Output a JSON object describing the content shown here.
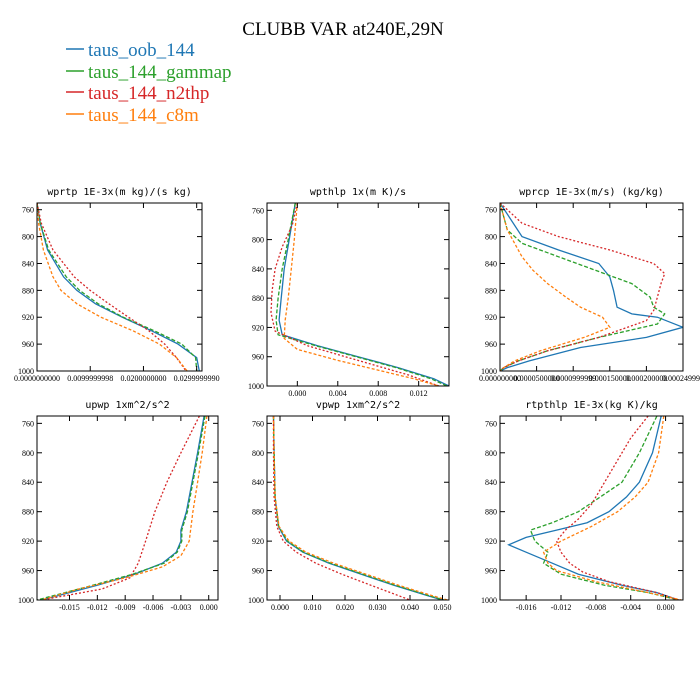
{
  "title": "CLUBB VAR at240E,29N",
  "legend": [
    {
      "label": "taus_oob_144",
      "color": "#1f77b4"
    },
    {
      "label": "taus_144_gammap",
      "color": "#2ca02c"
    },
    {
      "label": "taus_144_n2thp",
      "color": "#d62728"
    },
    {
      "label": "taus_144_c8m",
      "color": "#ff7f0e"
    }
  ],
  "chart_data": [
    {
      "type": "line",
      "title": "wprtp  1E-3x(m kg)/(s kg)",
      "xlim": [
        0,
        0.031
      ],
      "ylim": [
        750,
        1000
      ],
      "xticks": [
        0,
        0.01,
        0.02,
        0.03
      ],
      "xtick_labels": [
        "0.0000000000",
        "0.0099999998",
        "0.0200000000",
        "0.0299999990"
      ],
      "yticks": [
        760,
        800,
        840,
        880,
        920,
        960,
        1000
      ],
      "series": [
        {
          "name": "taus_oob_144",
          "y": [
            750,
            780,
            820,
            860,
            880,
            900,
            920,
            940,
            960,
            980,
            1000
          ],
          "x": [
            0.0,
            0.0006,
            0.002,
            0.005,
            0.0075,
            0.011,
            0.016,
            0.0215,
            0.0265,
            0.03,
            0.0305
          ]
        },
        {
          "name": "taus_144_gammap",
          "y": [
            750,
            780,
            820,
            860,
            880,
            900,
            920,
            940,
            960,
            980,
            1000
          ],
          "x": [
            0.0,
            0.0006,
            0.0022,
            0.0055,
            0.008,
            0.0115,
            0.0162,
            0.022,
            0.0272,
            0.0298,
            0.03
          ]
        },
        {
          "name": "taus_144_n2thp",
          "y": [
            750,
            780,
            820,
            860,
            880,
            900,
            920,
            940,
            960,
            980,
            1000
          ],
          "x": [
            0.0,
            0.0008,
            0.003,
            0.007,
            0.01,
            0.0135,
            0.0172,
            0.021,
            0.024,
            0.0262,
            0.028
          ]
        },
        {
          "name": "taus_144_c8m",
          "y": [
            750,
            780,
            820,
            860,
            880,
            900,
            920,
            940,
            960,
            980,
            1000
          ],
          "x": [
            0.0,
            0.0003,
            0.0012,
            0.003,
            0.0045,
            0.0075,
            0.012,
            0.018,
            0.023,
            0.0262,
            0.0282
          ]
        }
      ]
    },
    {
      "type": "line",
      "title": "wpthlp  1x(m K)/s",
      "xlim": [
        -0.003,
        0.015
      ],
      "ylim": [
        750,
        1000
      ],
      "xticks": [
        0,
        0.004,
        0.008,
        0.012
      ],
      "xtick_labels": [
        "0.000",
        "0.004",
        "0.008",
        "0.012"
      ],
      "yticks": [
        760,
        800,
        840,
        880,
        920,
        960,
        1000
      ],
      "series": [
        {
          "name": "taus_oob_144",
          "y": [
            750,
            800,
            840,
            880,
            910,
            930,
            945,
            960,
            975,
            990,
            1000
          ],
          "x": [
            -0.0002,
            -0.0008,
            -0.0013,
            -0.0016,
            -0.0018,
            -0.0015,
            0.002,
            0.006,
            0.01,
            0.0135,
            0.015
          ]
        },
        {
          "name": "taus_144_gammap",
          "y": [
            750,
            800,
            840,
            880,
            910,
            930,
            945,
            960,
            975,
            990,
            1000
          ],
          "x": [
            -0.0002,
            -0.0009,
            -0.0015,
            -0.0019,
            -0.0021,
            -0.0019,
            0.0018,
            0.0058,
            0.0098,
            0.0132,
            0.0148
          ]
        },
        {
          "name": "taus_144_n2thp",
          "y": [
            750,
            780,
            810,
            840,
            870,
            900,
            925,
            945,
            965,
            985,
            1000
          ],
          "x": [
            0.0,
            -0.0005,
            -0.0015,
            -0.0022,
            -0.0025,
            -0.0026,
            -0.0022,
            0.001,
            0.006,
            0.011,
            0.014
          ]
        },
        {
          "name": "taus_144_c8m",
          "y": [
            750,
            800,
            840,
            880,
            910,
            935,
            950,
            965,
            980,
            990,
            1000
          ],
          "x": [
            0.0,
            -0.0003,
            -0.0006,
            -0.0009,
            -0.0012,
            -0.0013,
            0.0,
            0.004,
            0.0085,
            0.0115,
            0.014
          ]
        }
      ]
    },
    {
      "type": "line",
      "title": "wprcp  1E-3x(m/s) (kg/kg)",
      "xlim": [
        0,
        0.00025
      ],
      "ylim": [
        750,
        1000
      ],
      "xticks": [
        0,
        5e-05,
        0.0001,
        0.00015,
        0.0002,
        0.00025
      ],
      "xtick_labels": [
        "0.000000000",
        "0.0000500000",
        "0.0000999999",
        "0.000150000",
        "0.000200000",
        "0.000249999"
      ],
      "yticks": [
        760,
        800,
        840,
        880,
        920,
        960,
        1000
      ],
      "series": [
        {
          "name": "taus_oob_144",
          "y": [
            750,
            800,
            820,
            840,
            860,
            880,
            905,
            915,
            920,
            935,
            950,
            965,
            985,
            995,
            1000
          ],
          "x": [
            0.0,
            3e-05,
            8e-05,
            0.000135,
            0.00015,
            0.000155,
            0.00016,
            0.00018,
            0.000215,
            0.00025,
            0.0002,
            0.00011,
            4e-05,
            1e-05,
            0.0
          ]
        },
        {
          "name": "taus_144_gammap",
          "y": [
            750,
            790,
            810,
            830,
            850,
            870,
            890,
            905,
            915,
            930,
            950,
            970,
            985,
            995,
            1000
          ],
          "x": [
            0.0,
            1e-05,
            3e-05,
            8e-05,
            0.00013,
            0.00018,
            0.000205,
            0.00021,
            0.000225,
            0.000215,
            0.000135,
            6.5e-05,
            2.5e-05,
            5e-06,
            0.0
          ]
        },
        {
          "name": "taus_144_n2thp",
          "y": [
            750,
            780,
            800,
            820,
            840,
            855,
            870,
            890,
            910,
            925,
            950,
            970,
            985,
            995,
            1000
          ],
          "x": [
            0.0,
            3e-05,
            8e-05,
            0.00015,
            0.00021,
            0.000225,
            0.00022,
            0.000215,
            0.00021,
            0.0002,
            0.000135,
            6.5e-05,
            2.5e-05,
            5e-06,
            0.0
          ]
        },
        {
          "name": "taus_144_c8m",
          "y": [
            750,
            790,
            810,
            830,
            850,
            870,
            890,
            905,
            920,
            935,
            950,
            970,
            985,
            995,
            1000
          ],
          "x": [
            0.0,
            1e-05,
            2e-05,
            3e-05,
            4.5e-05,
            6.5e-05,
            9e-05,
            0.00011,
            0.00014,
            0.00015,
            0.000115,
            5.5e-05,
            2e-05,
            5e-06,
            0.0
          ]
        }
      ]
    },
    {
      "type": "line",
      "title": "upwp  1xm^2/s^2",
      "xlim": [
        -0.0185,
        0.001
      ],
      "ylim": [
        750,
        1000
      ],
      "xticks": [
        -0.015,
        -0.012,
        -0.009,
        -0.006,
        -0.003,
        0
      ],
      "xtick_labels": [
        "-0.015",
        "-0.012",
        "-0.009",
        "-0.006",
        "-0.003",
        "0.000"
      ],
      "yticks": [
        760,
        800,
        840,
        880,
        920,
        960,
        1000
      ],
      "series": [
        {
          "name": "taus_oob_144",
          "y": [
            750,
            800,
            840,
            880,
            905,
            920,
            935,
            950,
            965,
            980,
            1000
          ],
          "x": [
            -0.0005,
            -0.0012,
            -0.0018,
            -0.0024,
            -0.003,
            -0.003,
            -0.0035,
            -0.005,
            -0.008,
            -0.012,
            -0.018
          ]
        },
        {
          "name": "taus_144_gammap",
          "y": [
            750,
            800,
            840,
            880,
            905,
            920,
            935,
            950,
            965,
            980,
            1000
          ],
          "x": [
            -0.0004,
            -0.0011,
            -0.0017,
            -0.0023,
            -0.0029,
            -0.0029,
            -0.0034,
            -0.0048,
            -0.0082,
            -0.0125,
            -0.0185
          ]
        },
        {
          "name": "taus_144_n2thp",
          "y": [
            750,
            800,
            840,
            880,
            920,
            950,
            970,
            985,
            1000
          ],
          "x": [
            -0.001,
            -0.003,
            -0.0045,
            -0.0058,
            -0.0068,
            -0.0076,
            -0.0085,
            -0.0115,
            -0.018
          ]
        },
        {
          "name": "taus_144_c8m",
          "y": [
            750,
            800,
            840,
            880,
            920,
            940,
            955,
            970,
            985,
            1000
          ],
          "x": [
            -0.0002,
            -0.0007,
            -0.0012,
            -0.0017,
            -0.0021,
            -0.003,
            -0.005,
            -0.009,
            -0.014,
            -0.018
          ]
        }
      ]
    },
    {
      "type": "line",
      "title": "vpwp  1xm^2/s^2",
      "xlim": [
        -0.004,
        0.052
      ],
      "ylim": [
        750,
        1000
      ],
      "xticks": [
        0,
        0.01,
        0.02,
        0.03,
        0.04,
        0.05
      ],
      "xtick_labels": [
        "0.000",
        "0.010",
        "0.020",
        "0.030",
        "0.040",
        "0.050"
      ],
      "yticks": [
        760,
        800,
        840,
        880,
        920,
        960,
        1000
      ],
      "series": [
        {
          "name": "taus_oob_144",
          "y": [
            750,
            800,
            860,
            900,
            920,
            935,
            950,
            965,
            980,
            995,
            1000
          ],
          "x": [
            -0.002,
            -0.0018,
            -0.0015,
            -0.0005,
            0.002,
            0.007,
            0.015,
            0.025,
            0.035,
            0.046,
            0.05
          ]
        },
        {
          "name": "taus_144_gammap",
          "y": [
            750,
            800,
            860,
            900,
            920,
            935,
            950,
            965,
            980,
            995,
            1000
          ],
          "x": [
            -0.002,
            -0.0018,
            -0.0015,
            -0.0004,
            0.0023,
            0.0073,
            0.0155,
            0.0255,
            0.0355,
            0.0465,
            0.0505
          ]
        },
        {
          "name": "taus_144_n2thp",
          "y": [
            750,
            800,
            860,
            900,
            920,
            935,
            950,
            965,
            980,
            995,
            1000
          ],
          "x": [
            -0.002,
            -0.002,
            -0.0018,
            -0.001,
            0.001,
            0.005,
            0.011,
            0.019,
            0.028,
            0.037,
            0.04
          ]
        },
        {
          "name": "taus_144_c8m",
          "y": [
            750,
            800,
            860,
            900,
            920,
            935,
            950,
            965,
            980,
            995,
            1000
          ],
          "x": [
            -0.002,
            -0.0018,
            -0.0015,
            -0.0003,
            0.0028,
            0.008,
            0.0165,
            0.0265,
            0.0365,
            0.0475,
            0.0515
          ]
        }
      ]
    },
    {
      "type": "line",
      "title": "rtpthlp  1E-3x(kg K)/kg",
      "xlim": [
        -0.019,
        0.002
      ],
      "ylim": [
        750,
        1000
      ],
      "xticks": [
        -0.016,
        -0.012,
        -0.008,
        -0.004,
        0
      ],
      "xtick_labels": [
        "-0.016",
        "-0.012",
        "-0.008",
        "-0.004",
        "0.000"
      ],
      "yticks": [
        760,
        800,
        840,
        880,
        920,
        960,
        1000
      ],
      "series": [
        {
          "name": "taus_oob_144",
          "y": [
            750,
            800,
            840,
            860,
            880,
            895,
            905,
            915,
            925,
            935,
            950,
            965,
            980,
            990,
            1000
          ],
          "x": [
            -0.0005,
            -0.0015,
            -0.003,
            -0.0045,
            -0.0065,
            -0.009,
            -0.0125,
            -0.016,
            -0.018,
            -0.016,
            -0.013,
            -0.01,
            -0.005,
            -0.001,
            0.0015
          ]
        },
        {
          "name": "taus_144_gammap",
          "y": [
            750,
            800,
            840,
            860,
            880,
            895,
            905,
            920,
            935,
            950,
            965,
            980,
            990,
            1000
          ],
          "x": [
            -0.001,
            -0.003,
            -0.005,
            -0.0075,
            -0.01,
            -0.013,
            -0.0155,
            -0.015,
            -0.0135,
            -0.014,
            -0.012,
            -0.007,
            -0.002,
            0.0015
          ]
        },
        {
          "name": "taus_144_n2thp",
          "y": [
            750,
            780,
            810,
            840,
            870,
            890,
            905,
            920,
            935,
            950,
            962,
            975,
            990,
            1000
          ],
          "x": [
            -0.002,
            -0.004,
            -0.0055,
            -0.007,
            -0.0085,
            -0.01,
            -0.0115,
            -0.0125,
            -0.012,
            -0.011,
            -0.0095,
            -0.0065,
            -0.001,
            0.0015
          ]
        },
        {
          "name": "taus_144_c8m",
          "y": [
            750,
            800,
            840,
            860,
            880,
            900,
            920,
            935,
            950,
            960,
            975,
            990,
            1000
          ],
          "x": [
            -0.0002,
            -0.0008,
            -0.002,
            -0.0035,
            -0.0055,
            -0.0085,
            -0.012,
            -0.014,
            -0.0135,
            -0.0125,
            -0.008,
            -0.002,
            0.0018
          ]
        }
      ]
    }
  ]
}
